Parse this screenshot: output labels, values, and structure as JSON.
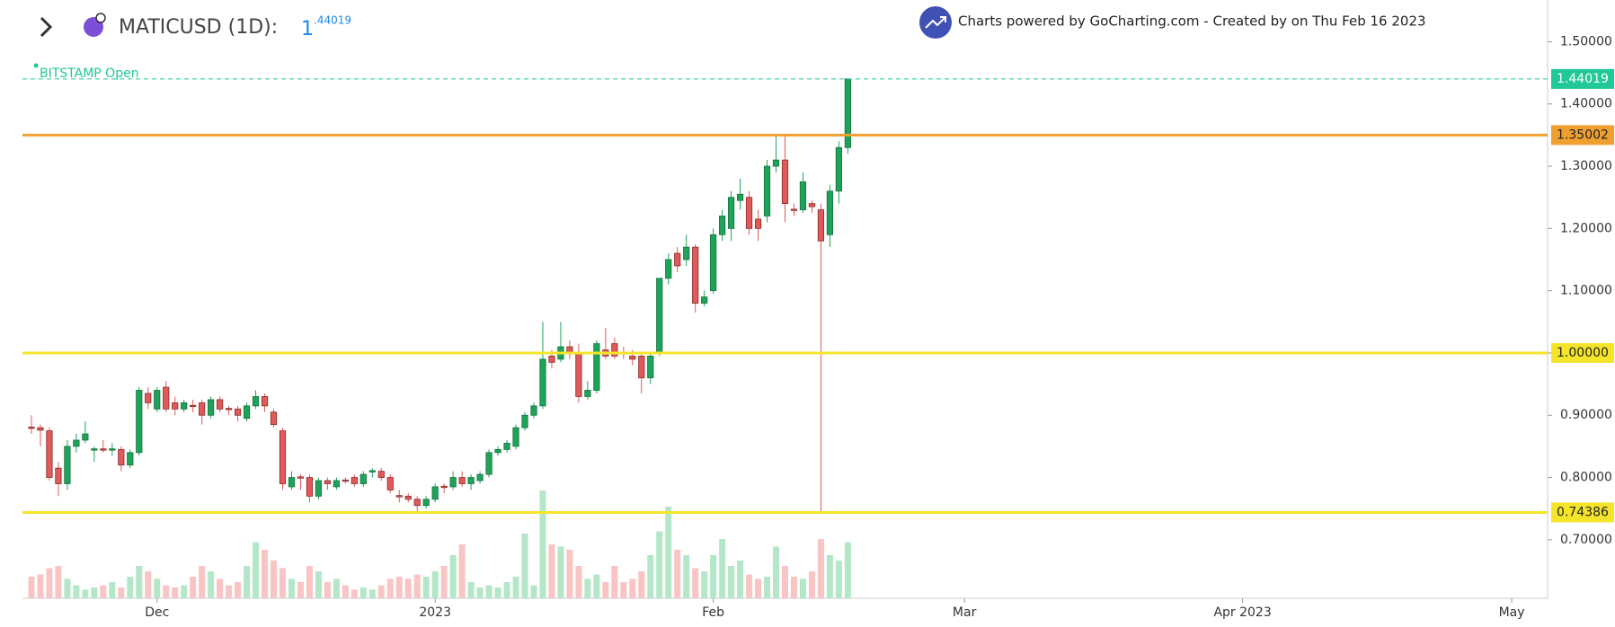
{
  "chart_data": {
    "type": "candlestick",
    "title": "MATICUSD (1D):",
    "price_int": "1",
    "price_frac": ".44019",
    "attribution": "Charts powered by GoCharting.com - Created by  on Thu Feb 16 2023",
    "source_label": "BITSTAMP Open",
    "up_color": "#1fa35a",
    "down_color": "#e05a5a",
    "volume_up_color": "#b4e6c8",
    "volume_down_color": "#f8c4c4",
    "x": [
      0,
      1,
      2,
      3,
      4,
      5,
      6,
      7,
      8,
      9,
      10,
      11,
      12,
      13,
      14,
      15,
      16,
      17,
      18,
      19,
      20,
      21,
      22,
      23,
      24,
      25,
      26,
      27,
      28,
      29,
      30,
      31,
      32,
      33,
      34,
      35,
      36,
      37,
      38,
      39,
      40,
      41,
      42,
      43,
      44,
      45,
      46,
      47,
      48,
      49,
      50,
      51,
      52,
      53,
      54,
      55,
      56,
      57,
      58,
      59,
      60,
      61,
      62,
      63,
      64,
      65,
      66,
      67,
      68,
      69,
      70,
      71,
      72,
      73,
      74,
      75,
      76,
      77,
      78,
      79,
      80,
      81,
      82,
      83,
      84,
      85,
      86,
      87,
      88,
      89,
      90,
      91
    ],
    "open": [
      0.881,
      0.88,
      0.875,
      0.815,
      0.79,
      0.85,
      0.86,
      0.845,
      0.846,
      0.845,
      0.845,
      0.82,
      0.84,
      0.935,
      0.91,
      0.945,
      0.92,
      0.91,
      0.916,
      0.92,
      0.9,
      0.925,
      0.911,
      0.91,
      0.895,
      0.915,
      0.93,
      0.905,
      0.875,
      0.785,
      0.801,
      0.8,
      0.77,
      0.795,
      0.785,
      0.796,
      0.8,
      0.79,
      0.809,
      0.81,
      0.8,
      0.771,
      0.77,
      0.765,
      0.755,
      0.765,
      0.786,
      0.785,
      0.8,
      0.79,
      0.795,
      0.805,
      0.84,
      0.845,
      0.85,
      0.88,
      0.9,
      0.915,
      0.995,
      0.99,
      1.01,
      1.0,
      0.93,
      0.94,
      1.005,
      1.015,
      1.001,
      0.995,
      0.995,
      0.96,
      1.0,
      1.12,
      1.16,
      1.15,
      1.17,
      1.08,
      1.1,
      1.19,
      1.2,
      1.245,
      1.25,
      1.215,
      1.22,
      1.3,
      1.31,
      1.231,
      1.23,
      1.24,
      1.23,
      1.19,
      1.26,
      1.33
    ],
    "high": [
      0.9,
      0.885,
      0.88,
      0.825,
      0.86,
      0.87,
      0.89,
      0.85,
      0.86,
      0.855,
      0.85,
      0.845,
      0.945,
      0.945,
      0.945,
      0.955,
      0.93,
      0.925,
      0.925,
      0.925,
      0.93,
      0.93,
      0.915,
      0.915,
      0.92,
      0.94,
      0.935,
      0.91,
      0.88,
      0.81,
      0.805,
      0.805,
      0.8,
      0.8,
      0.8,
      0.8,
      0.805,
      0.81,
      0.815,
      0.815,
      0.805,
      0.78,
      0.775,
      0.77,
      0.77,
      0.79,
      0.79,
      0.81,
      0.81,
      0.805,
      0.81,
      0.845,
      0.85,
      0.86,
      0.885,
      0.905,
      0.92,
      1.05,
      1.005,
      1.05,
      1.02,
      1.015,
      0.955,
      1.02,
      1.04,
      1.025,
      1.01,
      1.005,
      1.0,
      1.0,
      1.12,
      1.16,
      1.17,
      1.19,
      1.175,
      1.1,
      1.2,
      1.23,
      1.26,
      1.28,
      1.26,
      1.23,
      1.31,
      1.35,
      1.35,
      1.24,
      1.29,
      1.245,
      1.24,
      1.27,
      1.34,
      1.44019
    ],
    "low": [
      0.87,
      0.85,
      0.795,
      0.77,
      0.78,
      0.84,
      0.855,
      0.825,
      0.84,
      0.835,
      0.81,
      0.815,
      0.835,
      0.91,
      0.905,
      0.905,
      0.9,
      0.905,
      0.905,
      0.885,
      0.895,
      0.905,
      0.9,
      0.89,
      0.89,
      0.91,
      0.905,
      0.88,
      0.78,
      0.78,
      0.78,
      0.76,
      0.765,
      0.78,
      0.78,
      0.79,
      0.785,
      0.785,
      0.8,
      0.795,
      0.775,
      0.76,
      0.76,
      0.745,
      0.75,
      0.76,
      0.775,
      0.78,
      0.785,
      0.78,
      0.79,
      0.8,
      0.835,
      0.84,
      0.845,
      0.875,
      0.895,
      0.91,
      0.975,
      0.985,
      0.99,
      0.92,
      0.925,
      0.935,
      0.99,
      0.99,
      0.99,
      0.98,
      0.935,
      0.95,
      0.995,
      1.11,
      1.13,
      1.14,
      1.065,
      1.075,
      1.095,
      1.18,
      1.18,
      1.23,
      1.19,
      1.18,
      1.21,
      1.29,
      1.21,
      1.22,
      1.225,
      1.225,
      0.745,
      1.17,
      1.24,
      1.32
    ],
    "close": [
      0.879,
      0.876,
      0.8,
      0.79,
      0.85,
      0.86,
      0.87,
      0.846,
      0.845,
      0.846,
      0.82,
      0.84,
      0.94,
      0.92,
      0.94,
      0.91,
      0.91,
      0.92,
      0.914,
      0.9,
      0.925,
      0.91,
      0.909,
      0.9,
      0.915,
      0.93,
      0.915,
      0.885,
      0.79,
      0.8,
      0.799,
      0.77,
      0.795,
      0.79,
      0.795,
      0.794,
      0.79,
      0.805,
      0.811,
      0.8,
      0.78,
      0.769,
      0.765,
      0.755,
      0.765,
      0.785,
      0.784,
      0.8,
      0.79,
      0.8,
      0.805,
      0.84,
      0.845,
      0.855,
      0.88,
      0.9,
      0.915,
      0.99,
      0.985,
      1.01,
      1.0,
      0.93,
      0.94,
      1.015,
      0.995,
      0.995,
      0.999,
      0.99,
      0.96,
      0.995,
      1.12,
      1.15,
      1.14,
      1.17,
      1.08,
      1.09,
      1.19,
      1.22,
      1.25,
      1.255,
      1.2,
      1.2,
      1.3,
      1.31,
      1.24,
      1.229,
      1.275,
      1.235,
      1.18,
      1.26,
      1.33,
      1.44019
    ],
    "volume": [
      20,
      22,
      28,
      30,
      18,
      12,
      8,
      10,
      12,
      15,
      10,
      20,
      30,
      25,
      18,
      12,
      10,
      12,
      20,
      30,
      25,
      18,
      12,
      15,
      30,
      52,
      45,
      35,
      28,
      18,
      15,
      30,
      25,
      15,
      18,
      12,
      8,
      10,
      8,
      12,
      18,
      20,
      18,
      22,
      20,
      25,
      30,
      40,
      50,
      15,
      10,
      12,
      10,
      15,
      20,
      60,
      12,
      100,
      50,
      48,
      45,
      30,
      18,
      22,
      15,
      30,
      15,
      18,
      25,
      40,
      62,
      85,
      45,
      40,
      28,
      25,
      40,
      55,
      30,
      35,
      22,
      18,
      20,
      48,
      30,
      20,
      18,
      25,
      55,
      40,
      35,
      52
    ],
    "xlim": [
      -1,
      169
    ],
    "ylim": [
      0.606,
      1.567
    ],
    "xticks": [
      {
        "value": 14,
        "label": "Dec"
      },
      {
        "value": 45,
        "label": "2023"
      },
      {
        "value": 76,
        "label": "Feb"
      },
      {
        "value": 104,
        "label": "Mar"
      },
      {
        "value": 135,
        "label": "Apr 2023"
      },
      {
        "value": 165,
        "label": "May"
      }
    ],
    "yticks": [
      {
        "value": 0.7,
        "label": "0.70000"
      },
      {
        "value": 0.8,
        "label": "0.80000"
      },
      {
        "value": 0.9,
        "label": "0.90000"
      },
      {
        "value": 1,
        "label": "1.00000"
      },
      {
        "value": 1.1,
        "label": "1.10000"
      },
      {
        "value": 1.2,
        "label": "1.20000"
      },
      {
        "value": 1.3,
        "label": "1.30000"
      },
      {
        "value": 1.4,
        "label": "1.40000"
      },
      {
        "value": 1.5,
        "label": "1.50000"
      }
    ],
    "levels": [
      {
        "value": 1.44019,
        "color": "#20c997",
        "dashed": true
      },
      {
        "value": 1.35002,
        "color": "#f0a030",
        "dashed": false
      },
      {
        "value": 1,
        "label": "1.00000",
        "color": "#f5e52a",
        "dashed": false
      },
      {
        "value": 0.74386,
        "color": "#f5e52a",
        "dashed": false
      }
    ]
  }
}
